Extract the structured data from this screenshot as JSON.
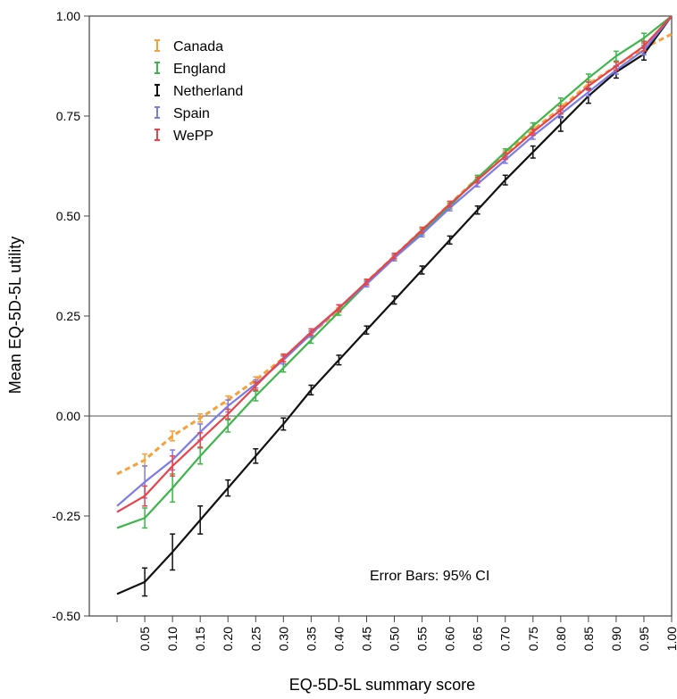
{
  "chart_data": {
    "type": "line",
    "title": "",
    "xlabel": "EQ-5D-5L summary score",
    "ylabel": "Mean EQ-5D-5L utility",
    "x": [
      0.0,
      0.05,
      0.1,
      0.15,
      0.2,
      0.25,
      0.3,
      0.35,
      0.4,
      0.45,
      0.5,
      0.55,
      0.6,
      0.65,
      0.7,
      0.75,
      0.8,
      0.85,
      0.9,
      0.95,
      1.0
    ],
    "x_tick_labels": [
      "0.05",
      "0.10",
      "0.15",
      "0.20",
      "0.25",
      "0.30",
      "0.35",
      "0.40",
      "0.45",
      "0.50",
      "0.55",
      "0.60",
      "0.65",
      "0.70",
      "0.75",
      "0.80",
      "0.85",
      "0.90",
      "0.95",
      "1.00"
    ],
    "y_tick_labels": [
      "1.00",
      "0.75",
      "0.50",
      "0.25",
      "0.00",
      "-0.25",
      "-0.50"
    ],
    "y_ticks": [
      1.0,
      0.75,
      0.5,
      0.25,
      0.0,
      -0.25,
      -0.5
    ],
    "ylim": [
      -0.5,
      1.0
    ],
    "reference_line_y": 0.0,
    "legend_placement": "top-left",
    "grid": false,
    "annotation": "Error Bars: 95% CI",
    "series": [
      {
        "name": "Canada",
        "color": "#f5a038",
        "dashed": true,
        "values": [
          -0.145,
          -0.11,
          -0.05,
          -0.005,
          0.04,
          0.09,
          0.145,
          0.205,
          0.265,
          0.335,
          0.4,
          0.465,
          0.53,
          0.595,
          0.655,
          0.715,
          0.77,
          0.83,
          0.875,
          0.92,
          0.955
        ],
        "err": [
          0,
          0.015,
          0.012,
          0.01,
          0.01,
          0.008,
          0.008,
          0.006,
          0.006,
          0.006,
          0.006,
          0.006,
          0.006,
          0.006,
          0.008,
          0.008,
          0.01,
          0.01,
          0.01,
          0.012,
          0
        ]
      },
      {
        "name": "England",
        "color": "#3db54a",
        "dashed": false,
        "values": [
          -0.28,
          -0.255,
          -0.18,
          -0.1,
          -0.025,
          0.05,
          0.12,
          0.19,
          0.26,
          0.33,
          0.395,
          0.46,
          0.525,
          0.595,
          0.66,
          0.725,
          0.785,
          0.845,
          0.9,
          0.945,
          1.0
        ],
        "err": [
          0,
          0.025,
          0.035,
          0.02,
          0.015,
          0.012,
          0.01,
          0.008,
          0.008,
          0.007,
          0.007,
          0.007,
          0.007,
          0.007,
          0.008,
          0.008,
          0.01,
          0.01,
          0.012,
          0.012,
          0
        ]
      },
      {
        "name": "Netherland",
        "color": "#111111",
        "dashed": false,
        "values": [
          -0.445,
          -0.415,
          -0.34,
          -0.26,
          -0.18,
          -0.1,
          -0.02,
          0.065,
          0.14,
          0.215,
          0.29,
          0.365,
          0.44,
          0.515,
          0.59,
          0.66,
          0.73,
          0.8,
          0.86,
          0.905,
          1.0
        ],
        "err": [
          0,
          0.035,
          0.045,
          0.035,
          0.02,
          0.018,
          0.015,
          0.012,
          0.012,
          0.01,
          0.01,
          0.01,
          0.01,
          0.01,
          0.012,
          0.015,
          0.018,
          0.018,
          0.015,
          0.015,
          0
        ]
      },
      {
        "name": "Spain",
        "color": "#7b7be8",
        "dashed": false,
        "values": [
          -0.225,
          -0.165,
          -0.11,
          -0.04,
          0.025,
          0.08,
          0.14,
          0.205,
          0.27,
          0.33,
          0.395,
          0.455,
          0.52,
          0.58,
          0.64,
          0.7,
          0.755,
          0.81,
          0.865,
          0.915,
          1.0
        ],
        "err": [
          0,
          0.04,
          0.025,
          0.02,
          0.015,
          0.01,
          0.01,
          0.008,
          0.008,
          0.007,
          0.007,
          0.007,
          0.007,
          0.007,
          0.008,
          0.008,
          0.01,
          0.01,
          0.01,
          0.012,
          0
        ]
      },
      {
        "name": "WePP",
        "color": "#e8434a",
        "dashed": false,
        "values": [
          -0.24,
          -0.2,
          -0.125,
          -0.06,
          0.005,
          0.075,
          0.145,
          0.21,
          0.27,
          0.335,
          0.4,
          0.465,
          0.53,
          0.59,
          0.65,
          0.71,
          0.765,
          0.825,
          0.875,
          0.925,
          1.0
        ],
        "err": [
          0,
          0.025,
          0.025,
          0.018,
          0.012,
          0.01,
          0.01,
          0.008,
          0.008,
          0.007,
          0.007,
          0.007,
          0.007,
          0.007,
          0.008,
          0.008,
          0.01,
          0.01,
          0.01,
          0.012,
          0
        ]
      }
    ]
  }
}
